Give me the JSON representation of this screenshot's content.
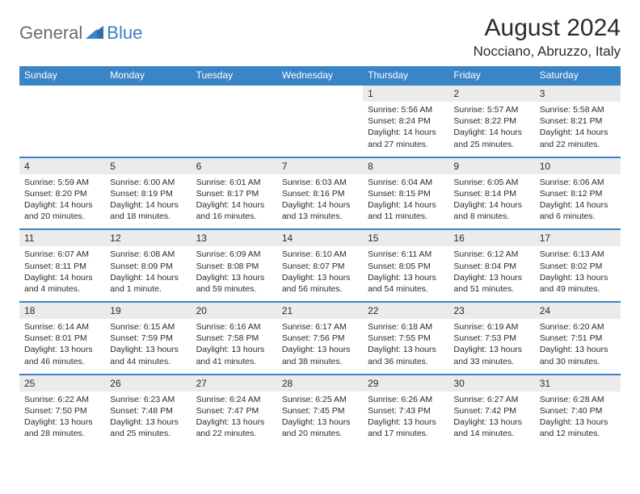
{
  "logo": {
    "general": "General",
    "blue": "Blue"
  },
  "title": "August 2024",
  "location": "Nocciano, Abruzzo, Italy",
  "colors": {
    "header_bg": "#3a84c8",
    "daynum_bg": "#ebebeb",
    "accent": "#3a7fc4",
    "text": "#2b2b2b"
  },
  "weekdays": [
    "Sunday",
    "Monday",
    "Tuesday",
    "Wednesday",
    "Thursday",
    "Friday",
    "Saturday"
  ],
  "weeks": [
    [
      null,
      null,
      null,
      null,
      {
        "n": "1",
        "sr": "Sunrise: 5:56 AM",
        "ss": "Sunset: 8:24 PM",
        "dl": "Daylight: 14 hours and 27 minutes."
      },
      {
        "n": "2",
        "sr": "Sunrise: 5:57 AM",
        "ss": "Sunset: 8:22 PM",
        "dl": "Daylight: 14 hours and 25 minutes."
      },
      {
        "n": "3",
        "sr": "Sunrise: 5:58 AM",
        "ss": "Sunset: 8:21 PM",
        "dl": "Daylight: 14 hours and 22 minutes."
      }
    ],
    [
      {
        "n": "4",
        "sr": "Sunrise: 5:59 AM",
        "ss": "Sunset: 8:20 PM",
        "dl": "Daylight: 14 hours and 20 minutes."
      },
      {
        "n": "5",
        "sr": "Sunrise: 6:00 AM",
        "ss": "Sunset: 8:19 PM",
        "dl": "Daylight: 14 hours and 18 minutes."
      },
      {
        "n": "6",
        "sr": "Sunrise: 6:01 AM",
        "ss": "Sunset: 8:17 PM",
        "dl": "Daylight: 14 hours and 16 minutes."
      },
      {
        "n": "7",
        "sr": "Sunrise: 6:03 AM",
        "ss": "Sunset: 8:16 PM",
        "dl": "Daylight: 14 hours and 13 minutes."
      },
      {
        "n": "8",
        "sr": "Sunrise: 6:04 AM",
        "ss": "Sunset: 8:15 PM",
        "dl": "Daylight: 14 hours and 11 minutes."
      },
      {
        "n": "9",
        "sr": "Sunrise: 6:05 AM",
        "ss": "Sunset: 8:14 PM",
        "dl": "Daylight: 14 hours and 8 minutes."
      },
      {
        "n": "10",
        "sr": "Sunrise: 6:06 AM",
        "ss": "Sunset: 8:12 PM",
        "dl": "Daylight: 14 hours and 6 minutes."
      }
    ],
    [
      {
        "n": "11",
        "sr": "Sunrise: 6:07 AM",
        "ss": "Sunset: 8:11 PM",
        "dl": "Daylight: 14 hours and 4 minutes."
      },
      {
        "n": "12",
        "sr": "Sunrise: 6:08 AM",
        "ss": "Sunset: 8:09 PM",
        "dl": "Daylight: 14 hours and 1 minute."
      },
      {
        "n": "13",
        "sr": "Sunrise: 6:09 AM",
        "ss": "Sunset: 8:08 PM",
        "dl": "Daylight: 13 hours and 59 minutes."
      },
      {
        "n": "14",
        "sr": "Sunrise: 6:10 AM",
        "ss": "Sunset: 8:07 PM",
        "dl": "Daylight: 13 hours and 56 minutes."
      },
      {
        "n": "15",
        "sr": "Sunrise: 6:11 AM",
        "ss": "Sunset: 8:05 PM",
        "dl": "Daylight: 13 hours and 54 minutes."
      },
      {
        "n": "16",
        "sr": "Sunrise: 6:12 AM",
        "ss": "Sunset: 8:04 PM",
        "dl": "Daylight: 13 hours and 51 minutes."
      },
      {
        "n": "17",
        "sr": "Sunrise: 6:13 AM",
        "ss": "Sunset: 8:02 PM",
        "dl": "Daylight: 13 hours and 49 minutes."
      }
    ],
    [
      {
        "n": "18",
        "sr": "Sunrise: 6:14 AM",
        "ss": "Sunset: 8:01 PM",
        "dl": "Daylight: 13 hours and 46 minutes."
      },
      {
        "n": "19",
        "sr": "Sunrise: 6:15 AM",
        "ss": "Sunset: 7:59 PM",
        "dl": "Daylight: 13 hours and 44 minutes."
      },
      {
        "n": "20",
        "sr": "Sunrise: 6:16 AM",
        "ss": "Sunset: 7:58 PM",
        "dl": "Daylight: 13 hours and 41 minutes."
      },
      {
        "n": "21",
        "sr": "Sunrise: 6:17 AM",
        "ss": "Sunset: 7:56 PM",
        "dl": "Daylight: 13 hours and 38 minutes."
      },
      {
        "n": "22",
        "sr": "Sunrise: 6:18 AM",
        "ss": "Sunset: 7:55 PM",
        "dl": "Daylight: 13 hours and 36 minutes."
      },
      {
        "n": "23",
        "sr": "Sunrise: 6:19 AM",
        "ss": "Sunset: 7:53 PM",
        "dl": "Daylight: 13 hours and 33 minutes."
      },
      {
        "n": "24",
        "sr": "Sunrise: 6:20 AM",
        "ss": "Sunset: 7:51 PM",
        "dl": "Daylight: 13 hours and 30 minutes."
      }
    ],
    [
      {
        "n": "25",
        "sr": "Sunrise: 6:22 AM",
        "ss": "Sunset: 7:50 PM",
        "dl": "Daylight: 13 hours and 28 minutes."
      },
      {
        "n": "26",
        "sr": "Sunrise: 6:23 AM",
        "ss": "Sunset: 7:48 PM",
        "dl": "Daylight: 13 hours and 25 minutes."
      },
      {
        "n": "27",
        "sr": "Sunrise: 6:24 AM",
        "ss": "Sunset: 7:47 PM",
        "dl": "Daylight: 13 hours and 22 minutes."
      },
      {
        "n": "28",
        "sr": "Sunrise: 6:25 AM",
        "ss": "Sunset: 7:45 PM",
        "dl": "Daylight: 13 hours and 20 minutes."
      },
      {
        "n": "29",
        "sr": "Sunrise: 6:26 AM",
        "ss": "Sunset: 7:43 PM",
        "dl": "Daylight: 13 hours and 17 minutes."
      },
      {
        "n": "30",
        "sr": "Sunrise: 6:27 AM",
        "ss": "Sunset: 7:42 PM",
        "dl": "Daylight: 13 hours and 14 minutes."
      },
      {
        "n": "31",
        "sr": "Sunrise: 6:28 AM",
        "ss": "Sunset: 7:40 PM",
        "dl": "Daylight: 13 hours and 12 minutes."
      }
    ]
  ]
}
